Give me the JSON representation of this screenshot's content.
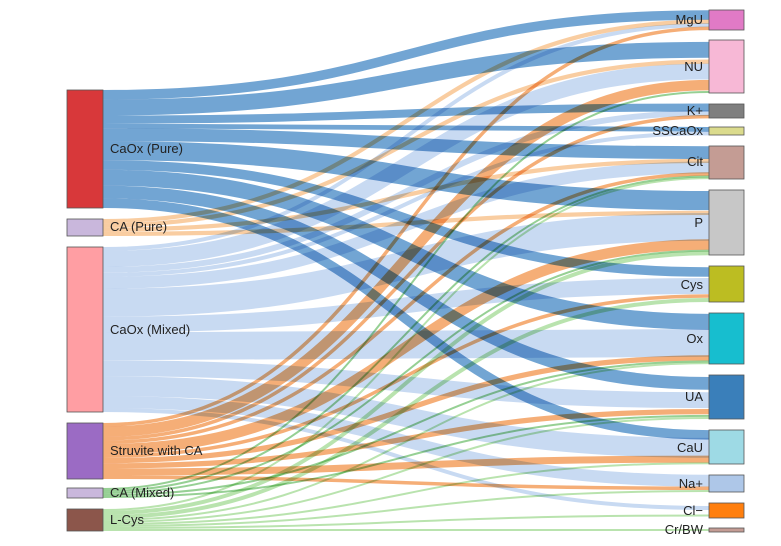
{
  "chart_data": {
    "type": "sankey",
    "sources": [
      {
        "id": "caox_pure",
        "label": "CaOx  (Pure)",
        "color": "#d8383a"
      },
      {
        "id": "ca_pure",
        "label": "CA (Pure)",
        "color": "#c9b7dc"
      },
      {
        "id": "caox_mixed",
        "label": "CaOx (Mixed)",
        "color": "#ff9ea3"
      },
      {
        "id": "struvite_ca",
        "label": "Struvite with CA",
        "color": "#9b6bc4"
      },
      {
        "id": "ca_mixed",
        "label": "CA (Mixed)",
        "color": "#c9b7dc"
      },
      {
        "id": "lcys",
        "label": "L-Cys",
        "color": "#8c564b"
      }
    ],
    "targets": [
      {
        "id": "mgu",
        "label": "MgU",
        "color": "#e17ac6"
      },
      {
        "id": "nu",
        "label": "NU",
        "color": "#f7b8d6"
      },
      {
        "id": "kplus",
        "label": "K+",
        "color": "#7f7f7f"
      },
      {
        "id": "sscaox",
        "label": "SSCaOx",
        "color": "#dbdb8d"
      },
      {
        "id": "cit",
        "label": "Cit",
        "color": "#c49c94"
      },
      {
        "id": "p",
        "label": "P",
        "color": "#c7c7c7"
      },
      {
        "id": "cys",
        "label": "Cys",
        "color": "#bcbd22"
      },
      {
        "id": "ox",
        "label": "Ox",
        "color": "#17becf"
      },
      {
        "id": "ua",
        "label": "UA",
        "color": "#3a7fba"
      },
      {
        "id": "cau",
        "label": "CaU",
        "color": "#9edae5"
      },
      {
        "id": "naplus",
        "label": "Na+",
        "color": "#aec7e8"
      },
      {
        "id": "clminus",
        "label": "Cl−",
        "color": "#ff7f0e"
      },
      {
        "id": "crbw",
        "label": "Cr/BW",
        "color": "#c49c94"
      }
    ],
    "link_colors": {
      "caox_pure": "#4f8fc8",
      "ca_pure": "#f7c08a",
      "caox_mixed": "#b5cdee",
      "struvite_ca": "#f39a55",
      "ca_mixed": "#7cc479",
      "lcys": "#a8dc9a"
    },
    "links": [
      {
        "source": "caox_pure",
        "target": "mgu",
        "value": 6
      },
      {
        "source": "caox_pure",
        "target": "nu",
        "value": 10
      },
      {
        "source": "caox_pure",
        "target": "kplus",
        "value": 5
      },
      {
        "source": "caox_pure",
        "target": "sscaox",
        "value": 3
      },
      {
        "source": "caox_pure",
        "target": "cit",
        "value": 8
      },
      {
        "source": "caox_pure",
        "target": "p",
        "value": 12
      },
      {
        "source": "caox_pure",
        "target": "cys",
        "value": 6
      },
      {
        "source": "caox_pure",
        "target": "ox",
        "value": 10
      },
      {
        "source": "caox_pure",
        "target": "ua",
        "value": 8
      },
      {
        "source": "caox_pure",
        "target": "cau",
        "value": 6
      },
      {
        "source": "ca_pure",
        "target": "mgu",
        "value": 2
      },
      {
        "source": "ca_pure",
        "target": "nu",
        "value": 2
      },
      {
        "source": "ca_pure",
        "target": "cit",
        "value": 2
      },
      {
        "source": "ca_pure",
        "target": "p",
        "value": 2
      },
      {
        "source": "caox_mixed",
        "target": "mgu",
        "value": 2
      },
      {
        "source": "caox_mixed",
        "target": "nu",
        "value": 8
      },
      {
        "source": "caox_mixed",
        "target": "kplus",
        "value": 3
      },
      {
        "source": "caox_mixed",
        "target": "sscaox",
        "value": 2
      },
      {
        "source": "caox_mixed",
        "target": "cit",
        "value": 6
      },
      {
        "source": "caox_mixed",
        "target": "p",
        "value": 14
      },
      {
        "source": "caox_mixed",
        "target": "cys",
        "value": 8
      },
      {
        "source": "caox_mixed",
        "target": "ox",
        "value": 14
      },
      {
        "source": "caox_mixed",
        "target": "ua",
        "value": 8
      },
      {
        "source": "caox_mixed",
        "target": "cau",
        "value": 10
      },
      {
        "source": "caox_mixed",
        "target": "naplus",
        "value": 6
      },
      {
        "source": "caox_mixed",
        "target": "clminus",
        "value": 2
      },
      {
        "source": "struvite_ca",
        "target": "mgu",
        "value": 2
      },
      {
        "source": "struvite_ca",
        "target": "nu",
        "value": 6
      },
      {
        "source": "struvite_ca",
        "target": "kplus",
        "value": 2
      },
      {
        "source": "struvite_ca",
        "target": "cit",
        "value": 2
      },
      {
        "source": "struvite_ca",
        "target": "p",
        "value": 6
      },
      {
        "source": "struvite_ca",
        "target": "cys",
        "value": 2
      },
      {
        "source": "struvite_ca",
        "target": "ox",
        "value": 3
      },
      {
        "source": "struvite_ca",
        "target": "ua",
        "value": 3
      },
      {
        "source": "struvite_ca",
        "target": "cau",
        "value": 4
      },
      {
        "source": "struvite_ca",
        "target": "naplus",
        "value": 2
      },
      {
        "source": "ca_mixed",
        "target": "nu",
        "value": 1
      },
      {
        "source": "ca_mixed",
        "target": "cit",
        "value": 1
      },
      {
        "source": "ca_mixed",
        "target": "p",
        "value": 1
      },
      {
        "source": "ca_mixed",
        "target": "ox",
        "value": 1
      },
      {
        "source": "ca_mixed",
        "target": "ua",
        "value": 1
      },
      {
        "source": "lcys",
        "target": "cit",
        "value": 1
      },
      {
        "source": "lcys",
        "target": "p",
        "value": 2
      },
      {
        "source": "lcys",
        "target": "cys",
        "value": 2
      },
      {
        "source": "lcys",
        "target": "ox",
        "value": 1
      },
      {
        "source": "lcys",
        "target": "ua",
        "value": 1
      },
      {
        "source": "lcys",
        "target": "cau",
        "value": 1
      },
      {
        "source": "lcys",
        "target": "naplus",
        "value": 1
      },
      {
        "source": "lcys",
        "target": "clminus",
        "value": 1
      },
      {
        "source": "lcys",
        "target": "crbw",
        "value": 1
      }
    ]
  }
}
